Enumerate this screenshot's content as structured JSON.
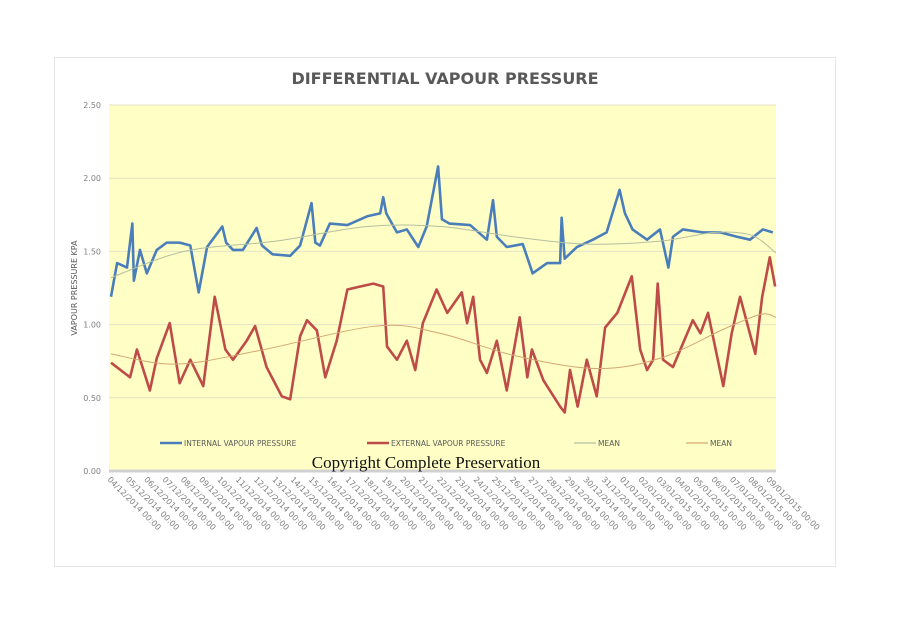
{
  "chart_data": {
    "type": "line",
    "title": "DIFFERENTIAL VAPOUR PRESSURE",
    "ylabel": "VAPOUR PRESSURE KPA",
    "xlabel": "",
    "ylim": [
      0,
      2.5
    ],
    "yticks": [
      "0.00",
      "0.50",
      "1.00",
      "1.50",
      "2.00",
      "2.50"
    ],
    "xlim": [
      "04/12/2014 00:00",
      "09/01/2015 08:00"
    ],
    "xticks": [
      "04/12/2014 00:00",
      "05/12/2014 00:00",
      "06/12/2014 00:00",
      "07/12/2014 00:00",
      "08/12/2014 00:00",
      "09/12/2014 00:00",
      "10/12/2014 00:00",
      "11/12/2014 00:00",
      "12/12/2014 00:00",
      "13/12/2014 00:00",
      "14/12/2014 00:00",
      "15/12/2014 00:00",
      "16/12/2014 00:00",
      "17/12/2014 00:00",
      "18/12/2014 00:00",
      "19/12/2014 00:00",
      "20/12/2014 00:00",
      "21/12/2014 00:00",
      "22/12/2014 00:00",
      "23/12/2014 00:00",
      "24/12/2014 00:00",
      "25/12/2014 00:00",
      "26/12/2014 00:00",
      "27/12/2014 00:00",
      "28/12/2014 00:00",
      "29/12/2014 00:00",
      "30/12/2014 00:00",
      "31/12/2014 00:00",
      "01/01/2015 00:00",
      "02/01/2015 00:00",
      "03/01/2015 00:00",
      "04/01/2015 00:00",
      "05/01/2015 00:00",
      "06/01/2015 00:00",
      "07/01/2015 00:00",
      "08/01/2015 00:00",
      "09/01/2015 00:00"
    ],
    "grid": true,
    "legend_position": "bottom-inside",
    "background_color": "#ffffc5",
    "annotation": "Copyright Complete Preservation",
    "series": [
      {
        "name": "INTERNAL VAPOUR PRESSURE",
        "color": "#4a7ebb",
        "points": [
          [
            "04/12/2014 00:00",
            1.19
          ],
          [
            "04/12/2014 08:00",
            1.42
          ],
          [
            "04/12/2014 21:00",
            1.39
          ],
          [
            "05/12/2014 04:00",
            1.69
          ],
          [
            "05/12/2014 06:00",
            1.3
          ],
          [
            "05/12/2014 14:00",
            1.51
          ],
          [
            "05/12/2014 23:00",
            1.35
          ],
          [
            "06/12/2014 12:00",
            1.51
          ],
          [
            "07/12/2014 01:00",
            1.56
          ],
          [
            "07/12/2014 18:00",
            1.56
          ],
          [
            "08/12/2014 08:00",
            1.54
          ],
          [
            "08/12/2014 19:00",
            1.22
          ],
          [
            "09/12/2014 06:00",
            1.53
          ],
          [
            "10/12/2014 02:00",
            1.67
          ],
          [
            "10/12/2014 07:00",
            1.56
          ],
          [
            "10/12/2014 16:00",
            1.51
          ],
          [
            "11/12/2014 05:00",
            1.51
          ],
          [
            "11/12/2014 23:00",
            1.66
          ],
          [
            "12/12/2014 06:00",
            1.54
          ],
          [
            "12/12/2014 20:00",
            1.48
          ],
          [
            "13/12/2014 19:00",
            1.47
          ],
          [
            "14/12/2014 08:00",
            1.54
          ],
          [
            "14/12/2014 23:00",
            1.83
          ],
          [
            "15/12/2014 04:00",
            1.56
          ],
          [
            "15/12/2014 10:00",
            1.54
          ],
          [
            "15/12/2014 23:00",
            1.69
          ],
          [
            "16/12/2014 22:00",
            1.68
          ],
          [
            "18/12/2014 00:00",
            1.74
          ],
          [
            "18/12/2014 17:00",
            1.76
          ],
          [
            "18/12/2014 21:00",
            1.87
          ],
          [
            "19/12/2014 01:00",
            1.76
          ],
          [
            "19/12/2014 15:00",
            1.63
          ],
          [
            "20/12/2014 04:00",
            1.65
          ],
          [
            "20/12/2014 19:00",
            1.53
          ],
          [
            "21/12/2014 06:00",
            1.67
          ],
          [
            "21/12/2014 21:00",
            2.08
          ],
          [
            "22/12/2014 02:00",
            1.72
          ],
          [
            "22/12/2014 12:00",
            1.69
          ],
          [
            "23/12/2014 15:00",
            1.68
          ],
          [
            "24/12/2014 13:00",
            1.58
          ],
          [
            "24/12/2014 21:00",
            1.85
          ],
          [
            "25/12/2014 02:00",
            1.6
          ],
          [
            "25/12/2014 15:00",
            1.53
          ],
          [
            "26/12/2014 12:00",
            1.55
          ],
          [
            "27/12/2014 01:00",
            1.35
          ],
          [
            "27/12/2014 20:00",
            1.42
          ],
          [
            "28/12/2014 13:00",
            1.42
          ],
          [
            "28/12/2014 15:00",
            1.73
          ],
          [
            "28/12/2014 19:00",
            1.45
          ],
          [
            "29/12/2014 11:00",
            1.53
          ],
          [
            "30/12/2014 08:00",
            1.58
          ],
          [
            "31/12/2014 02:00",
            1.63
          ],
          [
            "31/12/2014 19:00",
            1.92
          ],
          [
            "01/01/2015 02:00",
            1.76
          ],
          [
            "01/01/2015 12:00",
            1.65
          ],
          [
            "02/01/2015 07:00",
            1.58
          ],
          [
            "03/01/2015 00:00",
            1.65
          ],
          [
            "03/01/2015 11:00",
            1.39
          ],
          [
            "03/01/2015 17:00",
            1.6
          ],
          [
            "04/01/2015 06:00",
            1.65
          ],
          [
            "05/01/2015 08:00",
            1.63
          ],
          [
            "06/01/2015 07:00",
            1.63
          ],
          [
            "07/01/2015 05:00",
            1.6
          ],
          [
            "07/01/2015 22:00",
            1.58
          ],
          [
            "08/01/2015 15:00",
            1.65
          ],
          [
            "09/01/2015 04:00",
            1.63
          ]
        ]
      },
      {
        "name": "EXTERNAL VAPOUR PRESSURE",
        "color": "#be4b48",
        "points": [
          [
            "04/12/2014 00:00",
            0.74
          ],
          [
            "05/12/2014 01:00",
            0.64
          ],
          [
            "05/12/2014 10:00",
            0.83
          ],
          [
            "06/12/2014 03:00",
            0.55
          ],
          [
            "06/12/2014 12:00",
            0.77
          ],
          [
            "07/12/2014 05:00",
            1.01
          ],
          [
            "07/12/2014 18:00",
            0.6
          ],
          [
            "08/12/2014 08:00",
            0.76
          ],
          [
            "09/12/2014 01:00",
            0.58
          ],
          [
            "09/12/2014 16:00",
            1.19
          ],
          [
            "10/12/2014 06:00",
            0.83
          ],
          [
            "10/12/2014 16:00",
            0.76
          ],
          [
            "11/12/2014 10:00",
            0.89
          ],
          [
            "11/12/2014 21:00",
            0.99
          ],
          [
            "12/12/2014 12:00",
            0.71
          ],
          [
            "13/12/2014 08:00",
            0.51
          ],
          [
            "13/12/2014 19:00",
            0.49
          ],
          [
            "14/12/2014 08:00",
            0.92
          ],
          [
            "14/12/2014 17:00",
            1.03
          ],
          [
            "15/12/2014 06:00",
            0.96
          ],
          [
            "15/12/2014 17:00",
            0.64
          ],
          [
            "16/12/2014 08:00",
            0.89
          ],
          [
            "16/12/2014 22:00",
            1.24
          ],
          [
            "17/12/2014 15:00",
            1.26
          ],
          [
            "18/12/2014 08:00",
            1.28
          ],
          [
            "18/12/2014 21:00",
            1.26
          ],
          [
            "19/12/2014 02:00",
            0.85
          ],
          [
            "19/12/2014 15:00",
            0.76
          ],
          [
            "20/12/2014 04:00",
            0.89
          ],
          [
            "20/12/2014 15:00",
            0.69
          ],
          [
            "21/12/2014 01:00",
            1.01
          ],
          [
            "21/12/2014 19:00",
            1.24
          ],
          [
            "22/12/2014 09:00",
            1.08
          ],
          [
            "23/12/2014 04:00",
            1.22
          ],
          [
            "23/12/2014 11:00",
            1.01
          ],
          [
            "23/12/2014 19:00",
            1.19
          ],
          [
            "24/12/2014 04:00",
            0.76
          ],
          [
            "24/12/2014 13:00",
            0.67
          ],
          [
            "25/12/2014 02:00",
            0.89
          ],
          [
            "25/12/2014 15:00",
            0.55
          ],
          [
            "26/12/2014 08:00",
            1.05
          ],
          [
            "26/12/2014 18:00",
            0.64
          ],
          [
            "27/12/2014 00:00",
            0.83
          ],
          [
            "27/12/2014 15:00",
            0.62
          ],
          [
            "28/12/2014 13:00",
            0.44
          ],
          [
            "28/12/2014 19:00",
            0.4
          ],
          [
            "29/12/2014 02:00",
            0.69
          ],
          [
            "29/12/2014 12:00",
            0.44
          ],
          [
            "30/12/2014 00:00",
            0.76
          ],
          [
            "30/12/2014 13:00",
            0.51
          ],
          [
            "31/12/2014 00:00",
            0.98
          ],
          [
            "31/12/2014 16:00",
            1.08
          ],
          [
            "01/01/2015 11:00",
            1.33
          ],
          [
            "01/01/2015 22:00",
            0.83
          ],
          [
            "02/01/2015 07:00",
            0.69
          ],
          [
            "02/01/2015 15:00",
            0.76
          ],
          [
            "02/01/2015 21:00",
            1.28
          ],
          [
            "03/01/2015 04:00",
            0.76
          ],
          [
            "03/01/2015 17:00",
            0.71
          ],
          [
            "04/01/2015 19:00",
            1.03
          ],
          [
            "05/01/2015 05:00",
            0.94
          ],
          [
            "05/01/2015 15:00",
            1.08
          ],
          [
            "06/01/2015 11:00",
            0.58
          ],
          [
            "06/01/2015 22:00",
            0.94
          ],
          [
            "07/01/2015 09:00",
            1.19
          ],
          [
            "08/01/2015 05:00",
            0.8
          ],
          [
            "08/01/2015 14:00",
            1.19
          ],
          [
            "09/01/2015 00:00",
            1.46
          ],
          [
            "09/01/2015 07:00",
            1.26
          ]
        ]
      },
      {
        "name": "MEAN",
        "color": "#b5bfa0",
        "smooth": true,
        "points": [
          [
            "04/12/2014 00:00",
            1.32
          ],
          [
            "08/12/2014 00:00",
            1.5
          ],
          [
            "13/12/2014 00:00",
            1.57
          ],
          [
            "18/12/2014 00:00",
            1.67
          ],
          [
            "22/12/2014 00:00",
            1.67
          ],
          [
            "26/12/2014 00:00",
            1.6
          ],
          [
            "30/12/2014 00:00",
            1.55
          ],
          [
            "03/01/2015 00:00",
            1.57
          ],
          [
            "06/01/2015 00:00",
            1.63
          ],
          [
            "08/01/2015 00:00",
            1.61
          ],
          [
            "09/01/2015 08:00",
            1.49
          ]
        ]
      },
      {
        "name": "MEAN",
        "color": "#d4a673",
        "smooth": true,
        "points": [
          [
            "04/12/2014 00:00",
            0.8
          ],
          [
            "07/12/2014 12:00",
            0.73
          ],
          [
            "12/12/2014 00:00",
            0.82
          ],
          [
            "18/12/2014 12:00",
            0.99
          ],
          [
            "22/12/2014 00:00",
            0.94
          ],
          [
            "26/12/2014 00:00",
            0.79
          ],
          [
            "30/12/2014 12:00",
            0.7
          ],
          [
            "03/01/2015 00:00",
            0.77
          ],
          [
            "06/01/2015 12:00",
            0.97
          ],
          [
            "08/01/2015 12:00",
            1.07
          ],
          [
            "09/01/2015 08:00",
            1.05
          ]
        ]
      }
    ]
  }
}
